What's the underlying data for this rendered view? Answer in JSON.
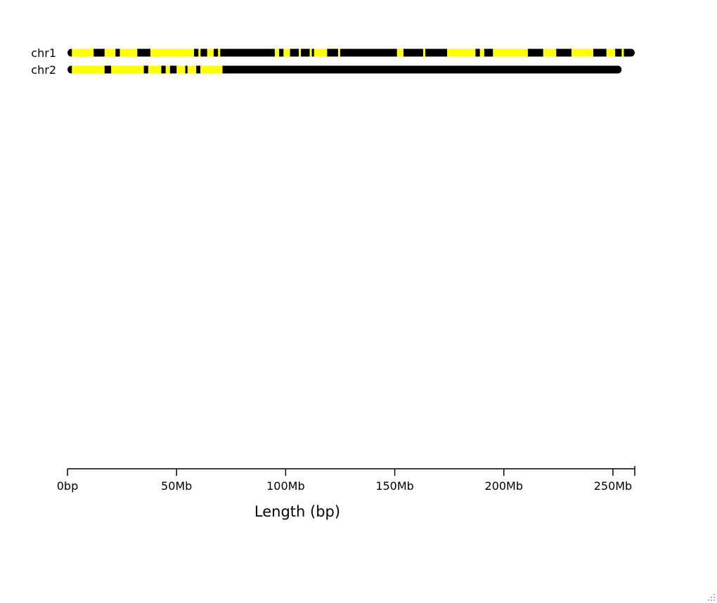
{
  "chart_data": {
    "type": "ideogram",
    "xlabel": "Length (bp)",
    "xlim": [
      0,
      260
    ],
    "x_units": "Mb",
    "ticks": [
      {
        "value": 0,
        "label": "0bp"
      },
      {
        "value": 50,
        "label": "50Mb"
      },
      {
        "value": 100,
        "label": "100Mb"
      },
      {
        "value": 150,
        "label": "150Mb"
      },
      {
        "value": 200,
        "label": "200Mb"
      },
      {
        "value": 250,
        "label": "250Mb"
      }
    ],
    "band_colors": {
      "black": "#000000",
      "yellow": "#ffff00"
    },
    "chromosomes": [
      {
        "name": "chr1",
        "length": 260,
        "yellow": [
          [
            2,
            12
          ],
          [
            17,
            22
          ],
          [
            24,
            32
          ],
          [
            38,
            58
          ],
          [
            60,
            61
          ],
          [
            64,
            67
          ],
          [
            69,
            70
          ],
          [
            95,
            97
          ],
          [
            99,
            102
          ],
          [
            106,
            107
          ],
          [
            111,
            112
          ],
          [
            113,
            119
          ],
          [
            124,
            125
          ],
          [
            151,
            154
          ],
          [
            163,
            164
          ],
          [
            174,
            187
          ],
          [
            189,
            191
          ],
          [
            195,
            211
          ],
          [
            218,
            224
          ],
          [
            231,
            241
          ],
          [
            247,
            251
          ],
          [
            254,
            255
          ]
        ]
      },
      {
        "name": "chr2",
        "length": 254,
        "yellow": [
          [
            2,
            17
          ],
          [
            20,
            35
          ],
          [
            37,
            43
          ],
          [
            45,
            47
          ],
          [
            50,
            54
          ],
          [
            55,
            59
          ],
          [
            61,
            62
          ],
          [
            66,
            61
          ],
          [
            61,
            71
          ],
          [
            61,
            71
          ],
          [
            61,
            71
          ],
          [
            61,
            71
          ],
          [
            61,
            71
          ],
          [
            61,
            71
          ],
          [
            61,
            71
          ],
          [
            61,
            71
          ],
          [
            61,
            71
          ],
          [
            61,
            71
          ],
          [
            61,
            71
          ],
          [
            61,
            71
          ],
          [
            61,
            71
          ],
          [
            61,
            71
          ],
          [
            61,
            71
          ],
          [
            61,
            71
          ],
          [
            61,
            71
          ],
          [
            61,
            71
          ],
          [
            61,
            71
          ],
          [
            61,
            71
          ],
          [
            61,
            71
          ],
          [
            61,
            71
          ],
          [
            61,
            71
          ],
          [
            61,
            71
          ],
          [
            61,
            71
          ],
          [
            61,
            71
          ],
          [
            61,
            71
          ],
          [
            61,
            71
          ],
          [
            61,
            71
          ],
          [
            61,
            71
          ],
          [
            61,
            71
          ],
          [
            61,
            71
          ],
          [
            61,
            71
          ],
          [
            61,
            71
          ],
          [
            61,
            71
          ],
          [
            61,
            71
          ],
          [
            61,
            71
          ],
          [
            61,
            71
          ],
          [
            61,
            71
          ],
          [
            61,
            71
          ],
          [
            61,
            71
          ],
          [
            61,
            71
          ],
          [
            61,
            71
          ],
          [
            61,
            71
          ],
          [
            61,
            71
          ],
          [
            61,
            71
          ],
          [
            61,
            71
          ],
          [
            61,
            71
          ],
          [
            61,
            71
          ],
          [
            61,
            71
          ],
          [
            61,
            71
          ],
          [
            61,
            71
          ],
          [
            61,
            71
          ],
          [
            61,
            71
          ],
          [
            61,
            71
          ],
          [
            61,
            71
          ],
          [
            61,
            71
          ],
          [
            61,
            71
          ],
          [
            61,
            71
          ],
          [
            61,
            71
          ],
          [
            61,
            71
          ],
          [
            61,
            71
          ],
          [
            61,
            71
          ],
          [
            61,
            71
          ],
          [
            61,
            71
          ],
          [
            61,
            71
          ],
          [
            61,
            71
          ],
          [
            61,
            71
          ],
          [
            61,
            71
          ],
          [
            61,
            71
          ],
          [
            61,
            71
          ],
          [
            61,
            71
          ],
          [
            61,
            71
          ],
          [
            61,
            71
          ],
          [
            61,
            71
          ],
          [
            61,
            71
          ],
          [
            61,
            71
          ],
          [
            61,
            71
          ],
          [
            61,
            71
          ],
          [
            61,
            71
          ],
          [
            61,
            71
          ],
          [
            61,
            71
          ],
          [
            61,
            71
          ],
          [
            61,
            71
          ],
          [
            61,
            71
          ],
          [
            61,
            71
          ],
          [
            61,
            71
          ],
          [
            61,
            71
          ],
          [
            61,
            71
          ],
          [
            61,
            71
          ],
          [
            61,
            71
          ],
          [
            61,
            71
          ],
          [
            61,
            71
          ],
          [
            61,
            71
          ],
          [
            61,
            71
          ],
          [
            61,
            71
          ],
          [
            61,
            71
          ],
          [
            61,
            71
          ],
          [
            61,
            71
          ],
          [
            61,
            71
          ],
          [
            61,
            71
          ],
          [
            61,
            71
          ],
          [
            61,
            71
          ],
          [
            61,
            71
          ],
          [
            61,
            71
          ],
          [
            61,
            71
          ],
          [
            61,
            71
          ],
          [
            61,
            71
          ],
          [
            61,
            71
          ],
          [
            61,
            71
          ],
          [
            61,
            71
          ],
          [
            61,
            71
          ],
          [
            61,
            71
          ],
          [
            61,
            71
          ],
          [
            61,
            71
          ],
          [
            61,
            71
          ],
          [
            61,
            71
          ],
          [
            61,
            71
          ],
          [
            61,
            71
          ],
          [
            61,
            71
          ],
          [
            61,
            71
          ],
          [
            61,
            71
          ],
          [
            61,
            71
          ],
          [
            61,
            71
          ],
          [
            61,
            71
          ],
          [
            61,
            71
          ],
          [
            61,
            71
          ],
          [
            61,
            71
          ],
          [
            61,
            71
          ],
          [
            61,
            71
          ],
          [
            61,
            71
          ],
          [
            61,
            71
          ],
          [
            61,
            71
          ],
          [
            61,
            71
          ],
          [
            61,
            71
          ],
          [
            61,
            71
          ],
          [
            61,
            71
          ],
          [
            61,
            71
          ],
          [
            61,
            71
          ],
          [
            61,
            71
          ],
          [
            61,
            71
          ],
          [
            61,
            71
          ],
          [
            61,
            71
          ],
          [
            61,
            71
          ],
          [
            61,
            71
          ],
          [
            61,
            71
          ],
          [
            61,
            71
          ],
          [
            61,
            71
          ],
          [
            61,
            71
          ],
          [
            61,
            71
          ],
          [
            61,
            71
          ],
          [
            61,
            71
          ],
          [
            61,
            71
          ],
          [
            61,
            71
          ],
          [
            61,
            71
          ]
        ]
      }
    ]
  }
}
